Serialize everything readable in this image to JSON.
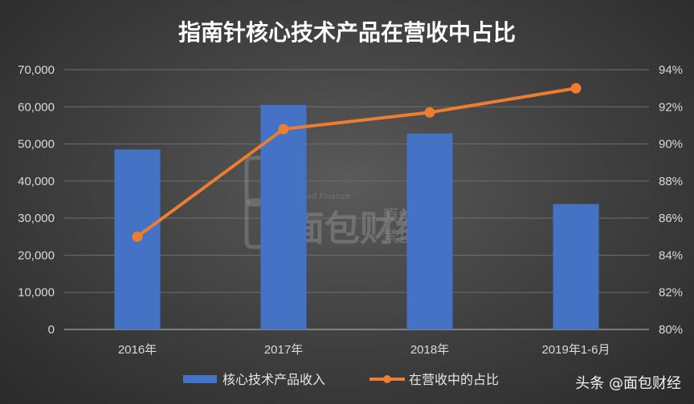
{
  "chart_data": {
    "type": "bar",
    "title": "指南针核心技术产品在营收中占比",
    "categories": [
      "2016年",
      "2017年",
      "2018年",
      "2019年1-6月"
    ],
    "series": [
      {
        "name": "核心技术产品收入",
        "type": "bar",
        "axis": "left",
        "values": [
          48500,
          60500,
          52800,
          33800
        ],
        "color": "#4472c4"
      },
      {
        "name": "在营收中的占比",
        "type": "line",
        "axis": "right",
        "values": [
          85.0,
          90.8,
          91.7,
          93.0
        ],
        "color": "#ed7d31"
      }
    ],
    "y_left": {
      "min": 0,
      "max": 70000,
      "step": 10000,
      "tick_labels": [
        "0",
        "10,000",
        "20,000",
        "30,000",
        "40,000",
        "50,000",
        "60,000",
        "70,000"
      ]
    },
    "y_right": {
      "min": 80,
      "max": 94,
      "step": 2,
      "tick_labels": [
        "80%",
        "82%",
        "84%",
        "86%",
        "88%",
        "90%",
        "92%",
        "94%"
      ]
    },
    "grid": true,
    "legend_position": "bottom"
  },
  "watermark": {
    "logo_text": "面包财经",
    "sub_text": "Bread Finance",
    "line1": "原创作品",
    "line2": "禁止转载"
  },
  "source_tag": "头条 @面包财经"
}
